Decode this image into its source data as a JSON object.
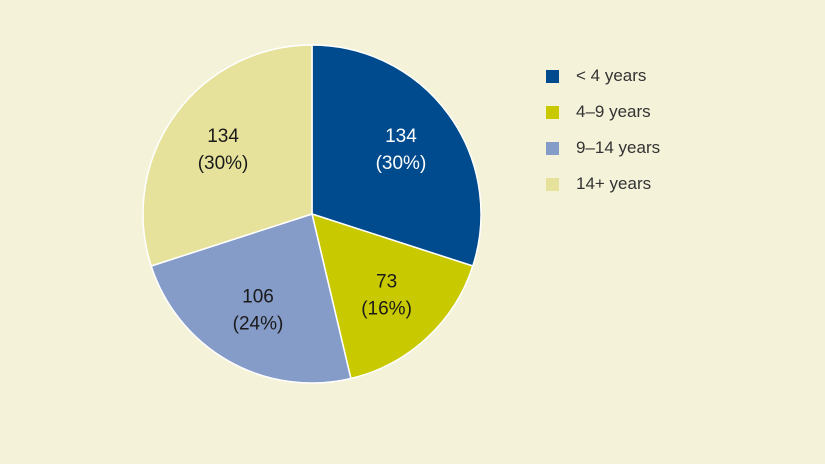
{
  "chart_data": {
    "type": "pie",
    "slices": [
      {
        "label": "< 4 years",
        "value": 134,
        "percent": "(30%)",
        "color": "#004b8d",
        "text_color": "#ffffff"
      },
      {
        "label": "4–9 years",
        "value": 73,
        "percent": "(16%)",
        "color": "#c9c900",
        "text_color": "#1a1a1a"
      },
      {
        "label": "9–14 years",
        "value": 106,
        "percent": "(24%)",
        "color": "#859bc8",
        "text_color": "#1a1a1a"
      },
      {
        "label": "14+ years",
        "value": 134,
        "percent": "(30%)",
        "color": "#e6e29b",
        "text_color": "#1a1a1a"
      }
    ],
    "start_angle": "12 o'clock",
    "direction": "clockwise",
    "legend_position": "right"
  },
  "colors": {
    "background": "#f4f2d9"
  }
}
